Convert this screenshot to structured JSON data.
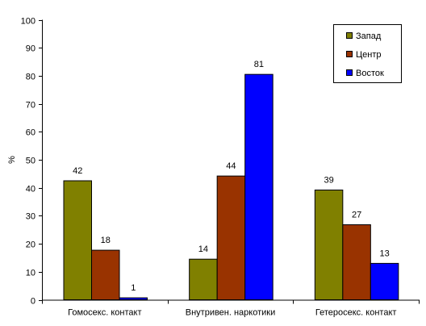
{
  "chart_data": {
    "type": "bar",
    "title": "",
    "xlabel": "",
    "ylabel": "%",
    "ylim": [
      0,
      100
    ],
    "yticks": [
      0,
      10,
      20,
      30,
      40,
      50,
      60,
      70,
      80,
      90,
      100
    ],
    "categories": [
      "Гомосекс. контакт",
      "Внутривен. наркотики",
      "Гетеросекс. контакт"
    ],
    "series": [
      {
        "name": "Запад",
        "color": "#808000",
        "values": [
          42,
          14,
          39
        ],
        "display_heights": [
          42.5,
          14.5,
          39.2
        ]
      },
      {
        "name": "Центр",
        "color": "#993300",
        "values": [
          18,
          44,
          27
        ],
        "display_heights": [
          17.7,
          44.2,
          26.8
        ]
      },
      {
        "name": "Восток",
        "color": "#0000ff",
        "values": [
          1,
          81,
          13
        ],
        "display_heights": [
          0.7,
          80.5,
          13
        ]
      }
    ],
    "grid": false,
    "legend": "top-right",
    "data_labels": true
  }
}
